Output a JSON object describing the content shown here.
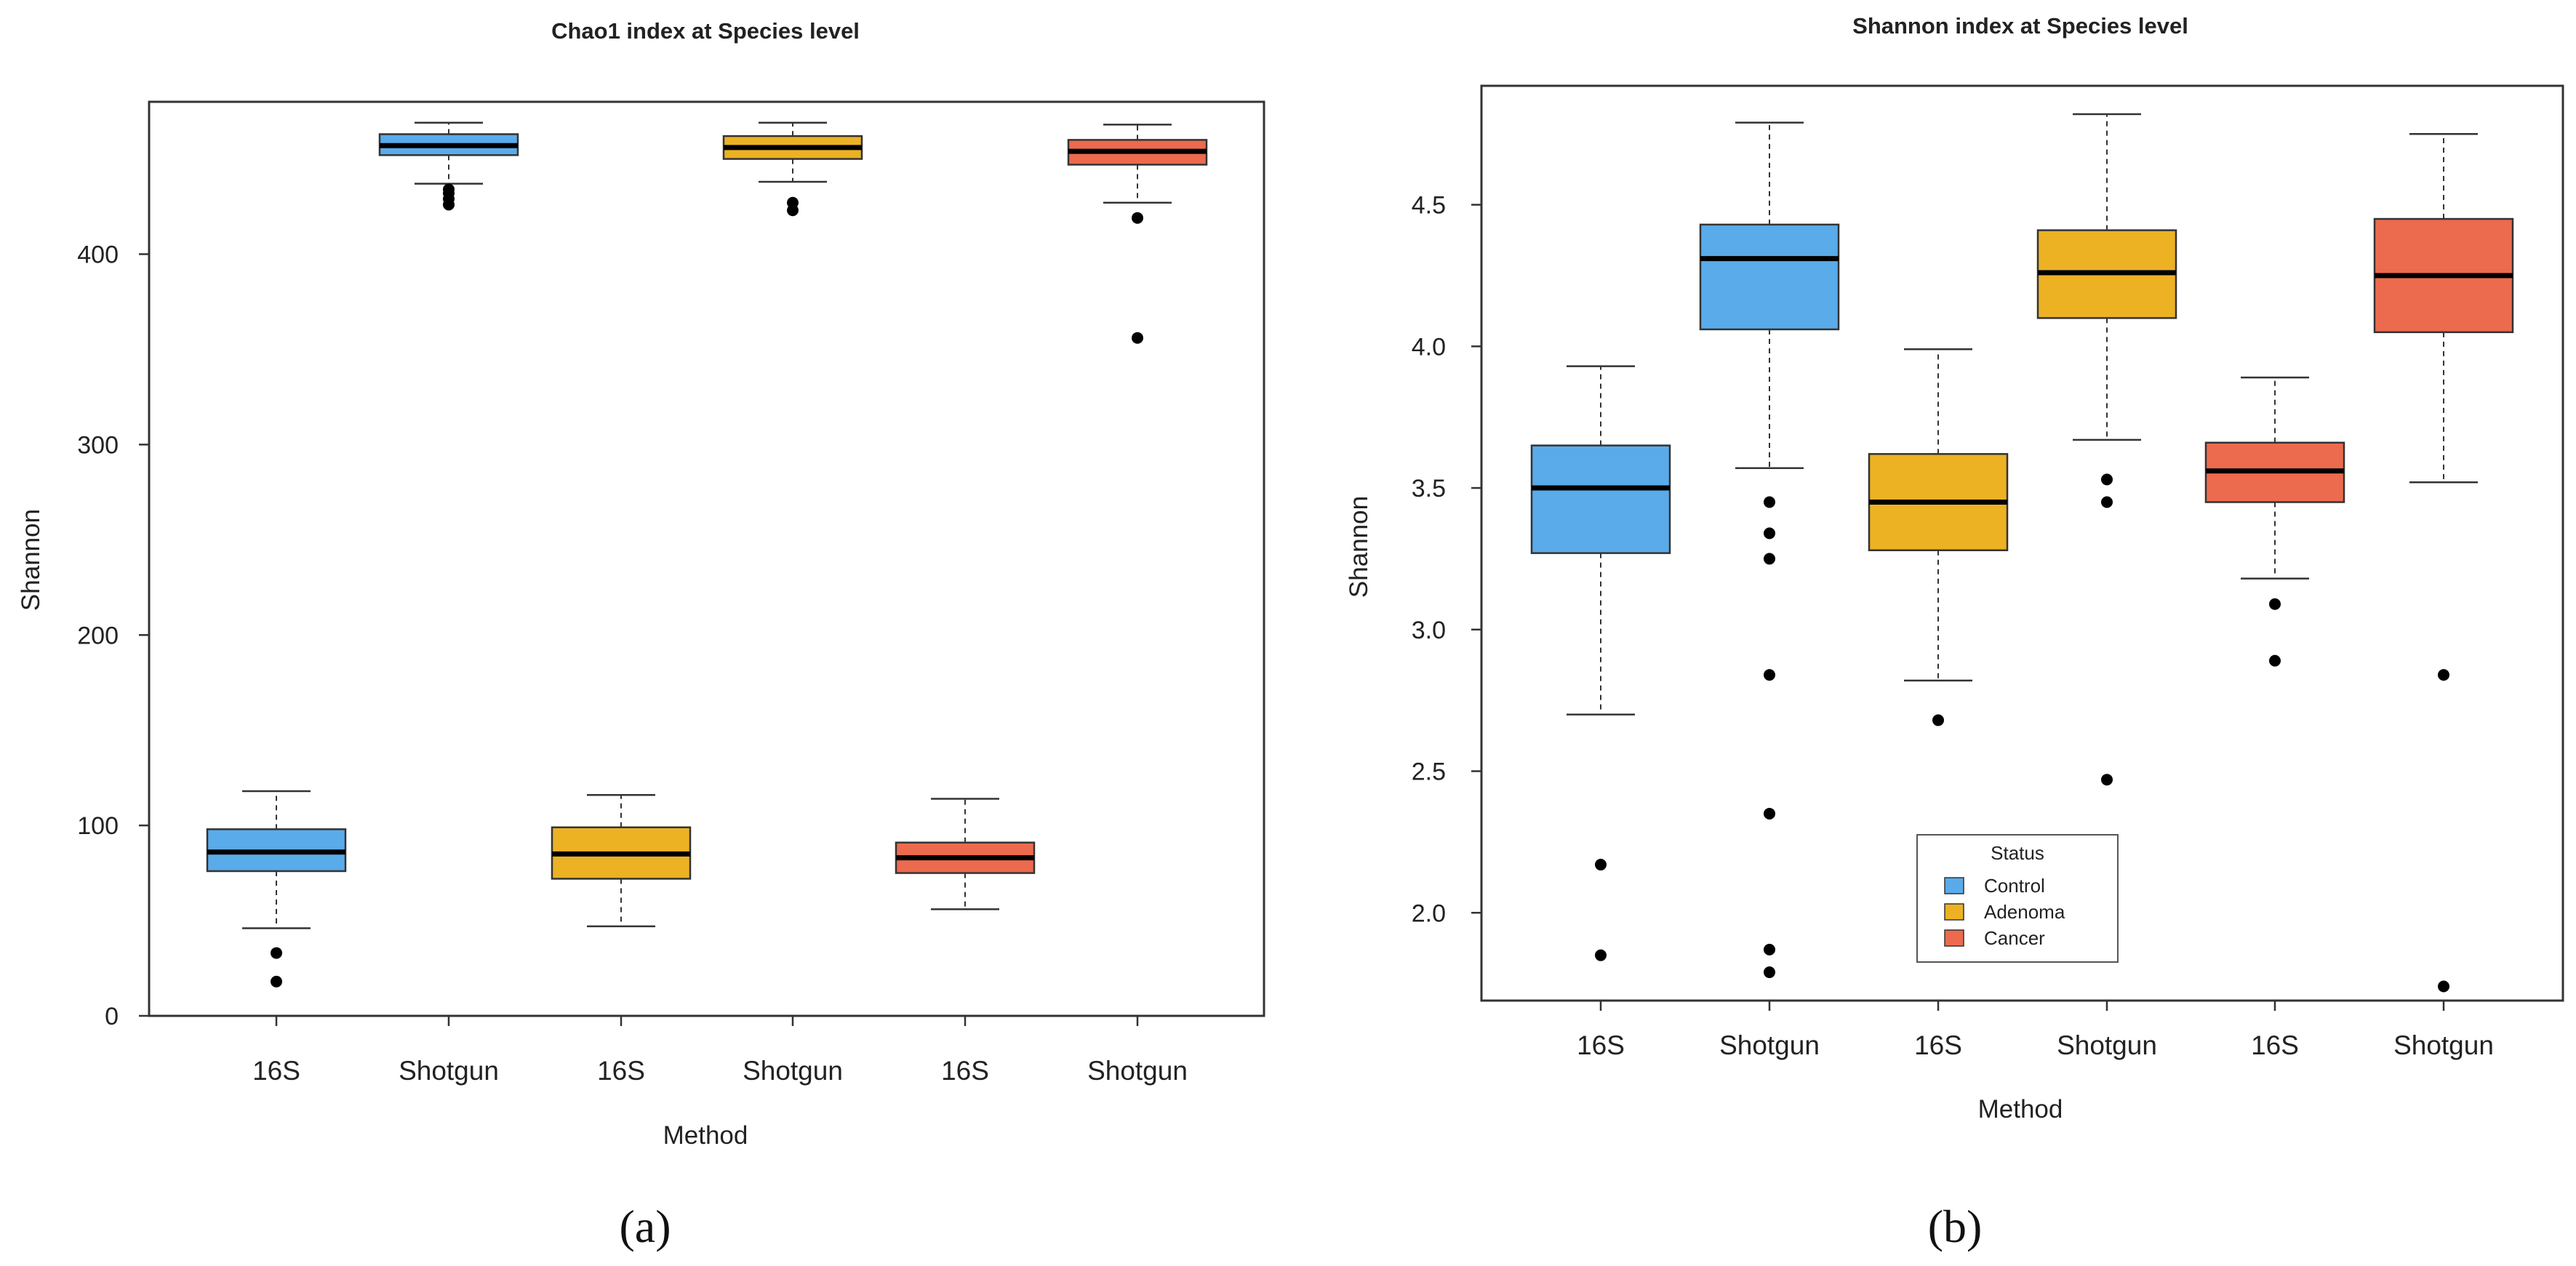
{
  "chart_data": [
    {
      "type": "boxplot",
      "panel_label": "(a)",
      "title": "Chao1 index at Species level",
      "xlabel": "Method",
      "ylabel": "Shannon",
      "ylim": [
        0,
        480
      ],
      "yticks": [
        0,
        100,
        200,
        300,
        400
      ],
      "ytick_labels": [
        "0",
        "100",
        "200",
        "300",
        "400"
      ],
      "categories": [
        "16S",
        "Shotgun",
        "16S",
        "Shotgun",
        "16S",
        "Shotgun"
      ],
      "boxes": [
        {
          "method": "16S",
          "status": "Control",
          "whisker_low": 46,
          "q1": 76,
          "median": 86,
          "q3": 98,
          "whisker_high": 118,
          "outliers": [
            33,
            18
          ]
        },
        {
          "method": "Shotgun",
          "status": "Control",
          "whisker_low": 437,
          "q1": 452,
          "median": 457,
          "q3": 463,
          "whisker_high": 469,
          "outliers": [
            434,
            432,
            429,
            426
          ]
        },
        {
          "method": "16S",
          "status": "Adenoma",
          "whisker_low": 47,
          "q1": 72,
          "median": 85,
          "q3": 99,
          "whisker_high": 116,
          "outliers": []
        },
        {
          "method": "Shotgun",
          "status": "Adenoma",
          "whisker_low": 438,
          "q1": 450,
          "median": 456,
          "q3": 462,
          "whisker_high": 469,
          "outliers": [
            427,
            423
          ]
        },
        {
          "method": "16S",
          "status": "Cancer",
          "whisker_low": 56,
          "q1": 75,
          "median": 83,
          "q3": 91,
          "whisker_high": 114,
          "outliers": []
        },
        {
          "method": "Shotgun",
          "status": "Cancer",
          "whisker_low": 427,
          "q1": 447,
          "median": 454,
          "q3": 460,
          "whisker_high": 468,
          "outliers": [
            419,
            356
          ]
        }
      ]
    },
    {
      "type": "boxplot",
      "panel_label": "(b)",
      "title": "Shannon index at Species level",
      "xlabel": "Method",
      "ylabel": "Shannon",
      "ylim": [
        1.69,
        4.92
      ],
      "yticks": [
        2.0,
        2.5,
        3.0,
        3.5,
        4.0,
        4.5
      ],
      "ytick_labels": [
        "2.0",
        "2.5",
        "3.0",
        "3.5",
        "4.0",
        "4.5"
      ],
      "categories": [
        "16S",
        "Shotgun",
        "16S",
        "Shotgun",
        "16S",
        "Shotgun"
      ],
      "boxes": [
        {
          "method": "16S",
          "status": "Control",
          "whisker_low": 2.7,
          "q1": 3.27,
          "median": 3.5,
          "q3": 3.65,
          "whisker_high": 3.93,
          "outliers": [
            2.17,
            1.85
          ]
        },
        {
          "method": "Shotgun",
          "status": "Control",
          "whisker_low": 3.57,
          "q1": 4.06,
          "median": 4.31,
          "q3": 4.43,
          "whisker_high": 4.79,
          "outliers": [
            3.45,
            3.34,
            3.25,
            2.84,
            2.35,
            1.87,
            1.79
          ]
        },
        {
          "method": "16S",
          "status": "Adenoma",
          "whisker_low": 2.82,
          "q1": 3.28,
          "median": 3.45,
          "q3": 3.62,
          "whisker_high": 3.99,
          "outliers": [
            2.68
          ]
        },
        {
          "method": "Shotgun",
          "status": "Adenoma",
          "whisker_low": 3.67,
          "q1": 4.1,
          "median": 4.26,
          "q3": 4.41,
          "whisker_high": 4.82,
          "outliers": [
            3.53,
            3.45,
            2.47
          ]
        },
        {
          "method": "16S",
          "status": "Cancer",
          "whisker_low": 3.18,
          "q1": 3.45,
          "median": 3.56,
          "q3": 3.66,
          "whisker_high": 3.89,
          "outliers": [
            3.09,
            2.89
          ]
        },
        {
          "method": "Shotgun",
          "status": "Cancer",
          "whisker_low": 3.52,
          "q1": 4.05,
          "median": 4.25,
          "q3": 4.45,
          "whisker_high": 4.75,
          "outliers": [
            2.84,
            1.74
          ]
        }
      ],
      "legend": {
        "title": "Status",
        "position": "bottom-center",
        "entries": [
          {
            "label": "Control",
            "color": "#5aabea"
          },
          {
            "label": "Adenoma",
            "color": "#ecb224"
          },
          {
            "label": "Cancer",
            "color": "#ec6a4e"
          }
        ]
      }
    }
  ],
  "colors": {
    "Control": "#5aabea",
    "Adenoma": "#ecb224",
    "Cancer": "#ec6a4e"
  }
}
